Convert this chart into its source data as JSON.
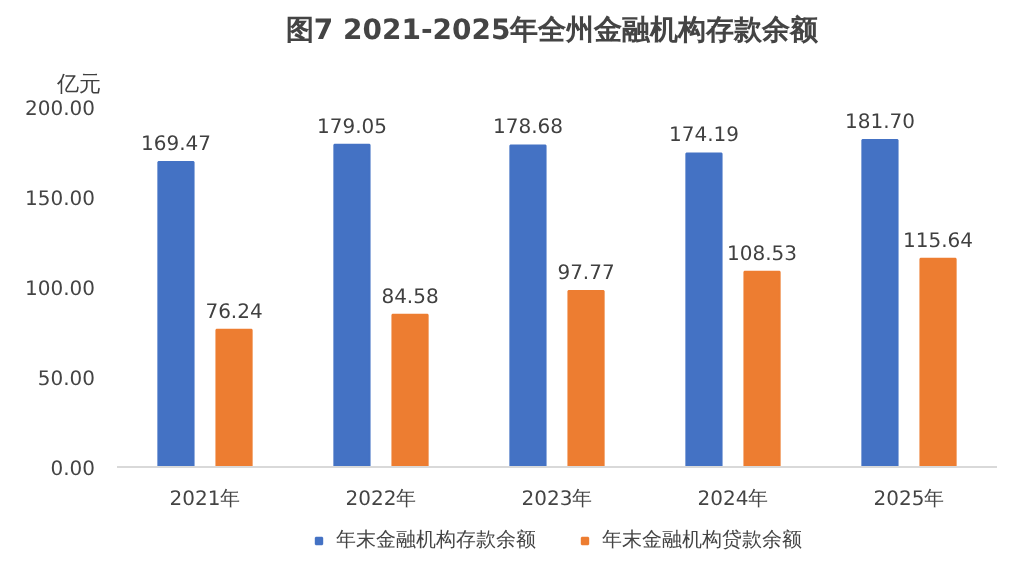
{
  "chart_data": {
    "type": "bar",
    "title": "图7  2021-2025年全州金融机构存款余额",
    "ylabel": "亿元",
    "categories": [
      "2021年",
      "2022年",
      "2023年",
      "2024年",
      "2025年"
    ],
    "series": [
      {
        "name": "年末金融机构存款余额",
        "color": "#4472c4",
        "values": [
          169.47,
          179.05,
          178.68,
          174.19,
          181.7
        ],
        "value_labels": [
          "169.47",
          "179.05",
          "178.68",
          "174.19",
          "181.70"
        ]
      },
      {
        "name": "年末金融机构贷款余额",
        "color": "#ed7d31",
        "values": [
          76.24,
          84.58,
          97.77,
          108.53,
          115.64
        ],
        "value_labels": [
          "76.24",
          "84.58",
          "97.77",
          "108.53",
          "115.64"
        ]
      }
    ],
    "ylim": [
      0,
      200
    ],
    "yticks": [
      {
        "value": 0,
        "label": "0.00"
      },
      {
        "value": 50,
        "label": "50.00"
      },
      {
        "value": 100,
        "label": "100.00"
      },
      {
        "value": 150,
        "label": "150.00"
      },
      {
        "value": 200,
        "label": "200.00"
      }
    ],
    "grid": false,
    "legend": "bottom"
  }
}
